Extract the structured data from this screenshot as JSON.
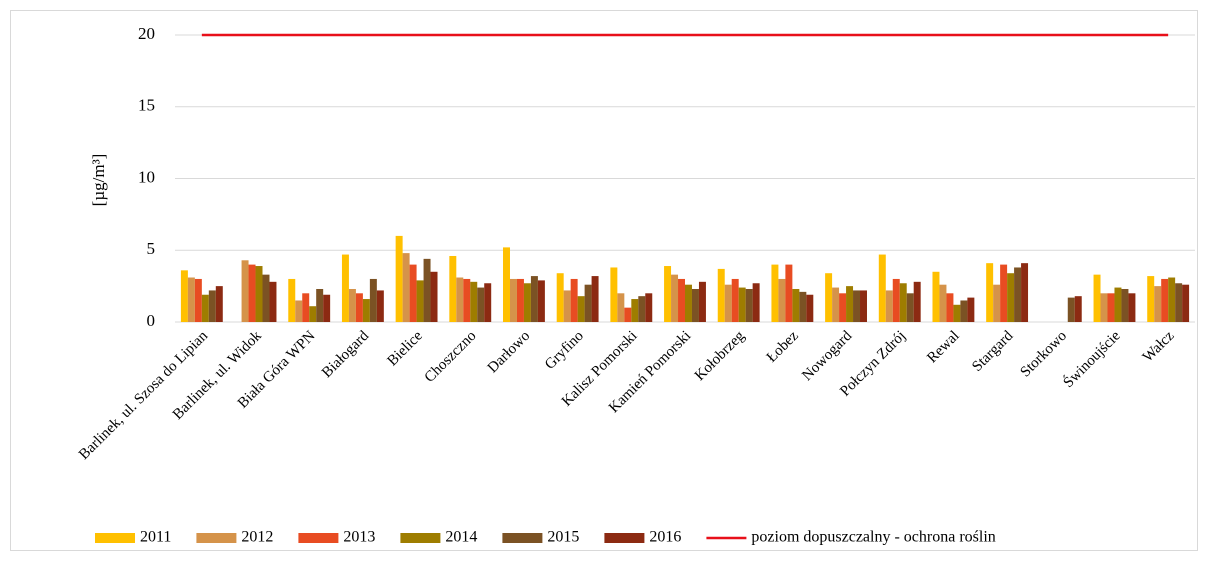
{
  "chart_data": {
    "type": "bar",
    "ylabel": "[µg/m³]",
    "categories": [
      "Barlinek, ul. Szosa do Lipian",
      "Barlinek, ul. Widok",
      "Biała Góra WPN",
      "Białogard",
      "Bielice",
      "Choszczno",
      "Darłowo",
      "Gryfino",
      "Kalisz Pomorski",
      "Kamień Pomorski",
      "Kołobrzeg",
      "Łobez",
      "Nowogard",
      "Połczyn Zdrój",
      "Rewal",
      "Stargard",
      "Storkowo",
      "Świnoujście",
      "Wałcz"
    ],
    "series": [
      {
        "name": "2011",
        "color": "#ffc000",
        "values": [
          3.6,
          null,
          3.0,
          4.7,
          6.0,
          4.6,
          5.2,
          3.4,
          3.8,
          3.9,
          3.7,
          4.0,
          3.4,
          4.7,
          3.5,
          4.1,
          null,
          3.3,
          3.2
        ]
      },
      {
        "name": "2012",
        "color": "#d5934a",
        "values": [
          3.1,
          4.3,
          1.5,
          2.3,
          4.8,
          3.1,
          3.0,
          2.2,
          2.0,
          3.3,
          2.6,
          3.0,
          2.4,
          2.2,
          2.6,
          2.6,
          null,
          2.0,
          2.5
        ]
      },
      {
        "name": "2013",
        "color": "#e84c22",
        "values": [
          3.0,
          4.0,
          2.0,
          2.0,
          4.0,
          3.0,
          3.0,
          3.0,
          1.0,
          3.0,
          3.0,
          4.0,
          2.0,
          3.0,
          2.0,
          4.0,
          null,
          2.0,
          3.0
        ]
      },
      {
        "name": "2014",
        "color": "#9e7d00",
        "values": [
          1.9,
          3.9,
          1.1,
          1.6,
          2.9,
          2.8,
          2.7,
          1.8,
          1.6,
          2.6,
          2.4,
          2.3,
          2.5,
          2.7,
          1.2,
          3.4,
          null,
          2.4,
          3.1
        ]
      },
      {
        "name": "2015",
        "color": "#7b5224",
        "values": [
          2.2,
          3.3,
          2.3,
          3.0,
          4.4,
          2.4,
          3.2,
          2.6,
          1.8,
          2.3,
          2.3,
          2.1,
          2.2,
          2.0,
          1.5,
          3.8,
          1.7,
          2.3,
          2.7
        ]
      },
      {
        "name": "2016",
        "color": "#8c2a12",
        "values": [
          2.5,
          2.8,
          1.9,
          2.2,
          3.5,
          2.7,
          2.9,
          3.2,
          2.0,
          2.8,
          2.7,
          1.9,
          2.2,
          2.8,
          1.7,
          4.1,
          1.8,
          2.0,
          2.6
        ]
      }
    ],
    "reference_line": {
      "name": "poziom dopuszczalny - ochrona roślin",
      "value": 20,
      "color": "#e8101a"
    },
    "ylim": [
      0,
      20
    ],
    "yticks": [
      0,
      5,
      10,
      15,
      20
    ],
    "grid": true
  }
}
